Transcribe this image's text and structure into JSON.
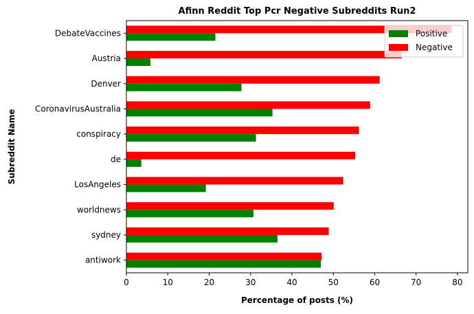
{
  "chart_data": {
    "type": "bar",
    "orientation": "horizontal",
    "title": "Afinn Reddit Top Pcr Negative Subreddits Run2",
    "xlabel": "Percentage of posts (%)",
    "ylabel": "Subreddit Name",
    "categories": [
      "antiwork",
      "sydney",
      "worldnews",
      "LosAngeles",
      "de",
      "conspiracy",
      "CoronavirusAustralia",
      "Denver",
      "Austria",
      "DebateVaccines"
    ],
    "series": [
      {
        "name": "Positive",
        "color": "#008000",
        "values": [
          47.0,
          36.5,
          30.7,
          19.2,
          3.6,
          31.3,
          35.3,
          27.8,
          5.8,
          21.5
        ]
      },
      {
        "name": "Negative",
        "color": "#ff0000",
        "values": [
          47.2,
          48.9,
          50.1,
          52.4,
          55.3,
          56.2,
          58.9,
          61.2,
          66.5,
          78.6
        ]
      }
    ],
    "xlim": [
      0,
      82.5
    ],
    "xticks": [
      0,
      10,
      20,
      30,
      40,
      50,
      60,
      70,
      80
    ],
    "grid": false,
    "legend_position": "top-right"
  }
}
